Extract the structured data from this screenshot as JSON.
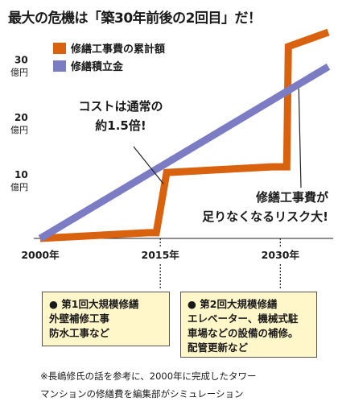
{
  "title": "最大の危機は「築30年前後の2回目」だ！",
  "chart_data": {
    "type": "line",
    "series": [
      {
        "name": "修繕工事費の累計額",
        "color": "#d9620f",
        "points": [
          [
            2000,
            0
          ],
          [
            2013.5,
            1
          ],
          [
            2014.5,
            1
          ],
          [
            2015.8,
            11.5
          ],
          [
            2029,
            12.5
          ],
          [
            2030.8,
            12.5
          ],
          [
            2031,
            33.5
          ],
          [
            2036,
            36
          ]
        ]
      },
      {
        "name": "修繕積立金",
        "color": "#7c7cc4",
        "points": [
          [
            2000,
            0
          ],
          [
            2036,
            30
          ]
        ]
      }
    ],
    "x_ticks": [
      {
        "value": 2000,
        "label": "2000年"
      },
      {
        "value": 2015,
        "label": "2015年"
      },
      {
        "value": 2030,
        "label": "2030年"
      }
    ],
    "y_ticks": [
      {
        "value": 10,
        "num": "10",
        "unit": "億円"
      },
      {
        "value": 20,
        "num": "20",
        "unit": "億円"
      },
      {
        "value": 30,
        "num": "30",
        "unit": "億円"
      }
    ],
    "xlim": [
      2000,
      2036
    ],
    "ylim": [
      0,
      36
    ],
    "annotations": [
      {
        "lines": [
          "コストは通常の",
          "約1.5倍!"
        ],
        "point": [
          2015.8,
          11.5
        ]
      },
      {
        "lines": [
          "修繕工事費が",
          "足りなくなるリスク大!"
        ],
        "point": [
          2031.5,
          27
        ]
      }
    ]
  },
  "notes": {
    "first": {
      "head": "● 第1回大規模修繕",
      "lines": [
        "外壁補修工事",
        "防水工事など"
      ]
    },
    "second": {
      "head": "● 第2回大規模修繕",
      "lines": [
        "エレベーター、機械式駐",
        "車場などの設備の補修。",
        "配管更新など"
      ]
    }
  },
  "footnote": [
    "※長嶋修氏の話を参考に、2000年に完成したタワー",
    "マンションの修繕費を編集部がシミュレーション"
  ]
}
